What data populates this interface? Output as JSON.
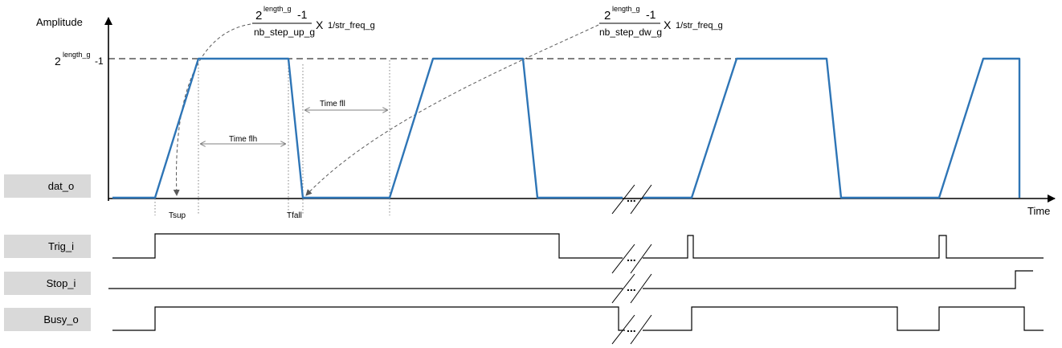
{
  "axes": {
    "y_label": "Amplitude",
    "x_label": "Time",
    "max_base": "2",
    "max_exp": "length_g",
    "max_suffix": "-1"
  },
  "formula_up": {
    "num_base": "2",
    "num_exp": "length_g",
    "num_suffix": "-1",
    "denominator": "nb_step_up_g",
    "times": "X",
    "factor": "1/str_freq_g"
  },
  "formula_down": {
    "num_base": "2",
    "num_exp": "length_g",
    "num_suffix": "-1",
    "denominator": "nb_step_dw_g",
    "times": "X",
    "factor": "1/str_freq_g"
  },
  "annotations": {
    "time_flh": "Time flh",
    "time_fll": "Time fll",
    "tsup": "Tsup",
    "tfall": "Tfall",
    "break": "..."
  },
  "signals": [
    {
      "name": "dat_o"
    },
    {
      "name": "Trig_i"
    },
    {
      "name": "Stop_i"
    },
    {
      "name": "Busy_o"
    }
  ],
  "colors": {
    "waveform": "#2e75b6",
    "signal_box": "#d9d9d9"
  }
}
